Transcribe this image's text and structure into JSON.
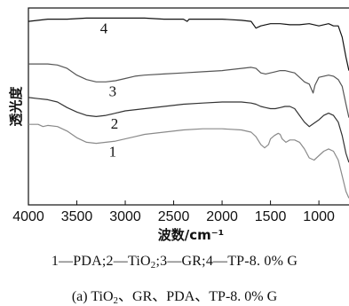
{
  "chart_data": {
    "type": "line",
    "xlabel": "波数/cm⁻¹",
    "ylabel": "透光度",
    "xlim": [
      4000,
      680
    ],
    "xticks": [
      4000,
      3500,
      3000,
      2500,
      2000,
      1500,
      1000
    ],
    "y_ticks_shown": false,
    "grid": false,
    "series": [
      {
        "name": "4",
        "color": "#111111",
        "x": [
          4000,
          3800,
          3600,
          3400,
          3200,
          3000,
          2800,
          2600,
          2400,
          2360,
          2340,
          2300,
          2000,
          1800,
          1700,
          1650,
          1600,
          1550,
          1500,
          1400,
          1300,
          1200,
          1100,
          1000,
          900,
          850,
          800,
          760,
          720,
          690
        ],
        "values": [
          8.2,
          8.3,
          8.3,
          8.35,
          8.35,
          8.35,
          8.35,
          8.3,
          8.3,
          8.2,
          8.3,
          8.3,
          8.3,
          8.25,
          8.2,
          7.9,
          8.0,
          8.05,
          8.1,
          8.1,
          8.05,
          8.05,
          8.1,
          8.0,
          8.1,
          8.0,
          8.0,
          7.5,
          6.6,
          6.0
        ]
      },
      {
        "name": "3",
        "color": "#555555",
        "x": [
          4000,
          3900,
          3800,
          3700,
          3600,
          3500,
          3400,
          3300,
          3200,
          3100,
          3000,
          2900,
          2800,
          2600,
          2400,
          2200,
          2000,
          1800,
          1700,
          1650,
          1600,
          1550,
          1500,
          1450,
          1400,
          1350,
          1300,
          1250,
          1200,
          1150,
          1100,
          1060,
          1040,
          1000,
          950,
          900,
          850,
          800,
          760,
          720,
          690
        ],
        "values": [
          6.3,
          6.3,
          6.3,
          6.25,
          6.1,
          5.8,
          5.6,
          5.5,
          5.5,
          5.55,
          5.65,
          5.75,
          5.8,
          5.85,
          5.9,
          5.95,
          6.0,
          6.1,
          6.15,
          6.1,
          5.9,
          5.85,
          5.9,
          5.95,
          6.0,
          6.0,
          5.95,
          5.9,
          5.7,
          5.5,
          5.4,
          5.0,
          5.35,
          5.7,
          5.75,
          5.8,
          5.75,
          5.6,
          5.3,
          4.5,
          3.9
        ]
      },
      {
        "name": "2",
        "color": "#333333",
        "x": [
          4000,
          3900,
          3800,
          3700,
          3600,
          3500,
          3400,
          3300,
          3200,
          3100,
          3000,
          2800,
          2600,
          2400,
          2200,
          2000,
          1800,
          1700,
          1650,
          1600,
          1550,
          1500,
          1450,
          1400,
          1350,
          1300,
          1250,
          1200,
          1150,
          1100,
          1050,
          1000,
          950,
          900,
          850,
          800,
          760,
          720,
          690
        ],
        "values": [
          4.8,
          4.75,
          4.7,
          4.6,
          4.35,
          4.15,
          4.0,
          3.95,
          4.0,
          4.1,
          4.2,
          4.3,
          4.4,
          4.5,
          4.55,
          4.6,
          4.6,
          4.55,
          4.5,
          4.4,
          4.35,
          4.3,
          4.3,
          4.35,
          4.4,
          4.4,
          4.3,
          4.0,
          3.7,
          3.5,
          3.65,
          3.8,
          4.0,
          4.1,
          4.0,
          3.7,
          3.1,
          2.3,
          1.9
        ]
      },
      {
        "name": "1",
        "color": "#8a8a8a",
        "x": [
          4000,
          3900,
          3850,
          3800,
          3700,
          3600,
          3500,
          3400,
          3300,
          3200,
          3100,
          3000,
          2900,
          2800,
          2600,
          2400,
          2200,
          2000,
          1800,
          1700,
          1650,
          1600,
          1560,
          1520,
          1500,
          1460,
          1420,
          1400,
          1380,
          1340,
          1300,
          1250,
          1200,
          1150,
          1100,
          1050,
          1000,
          950,
          900,
          850,
          800,
          760,
          720,
          690
        ],
        "values": [
          3.6,
          3.6,
          3.5,
          3.55,
          3.5,
          3.3,
          3.0,
          2.8,
          2.75,
          2.8,
          2.85,
          2.95,
          3.05,
          3.15,
          3.25,
          3.35,
          3.4,
          3.4,
          3.35,
          3.25,
          3.05,
          2.7,
          2.55,
          2.7,
          2.95,
          3.1,
          3.2,
          3.15,
          2.95,
          2.8,
          2.9,
          2.9,
          2.8,
          2.5,
          2.1,
          2.0,
          2.2,
          2.4,
          2.5,
          2.4,
          2.0,
          1.3,
          0.6,
          0.3
        ]
      }
    ]
  },
  "legend": {
    "items": [
      "1—PDA",
      "2—TiO",
      "3—GR",
      "4—TP-8. 0% G"
    ],
    "separator": ";",
    "subscript": "2"
  },
  "caption": {
    "prefix": "(a) TiO",
    "subscript": "2",
    "rest": "、GR、PDA、TP-8. 0% G"
  }
}
